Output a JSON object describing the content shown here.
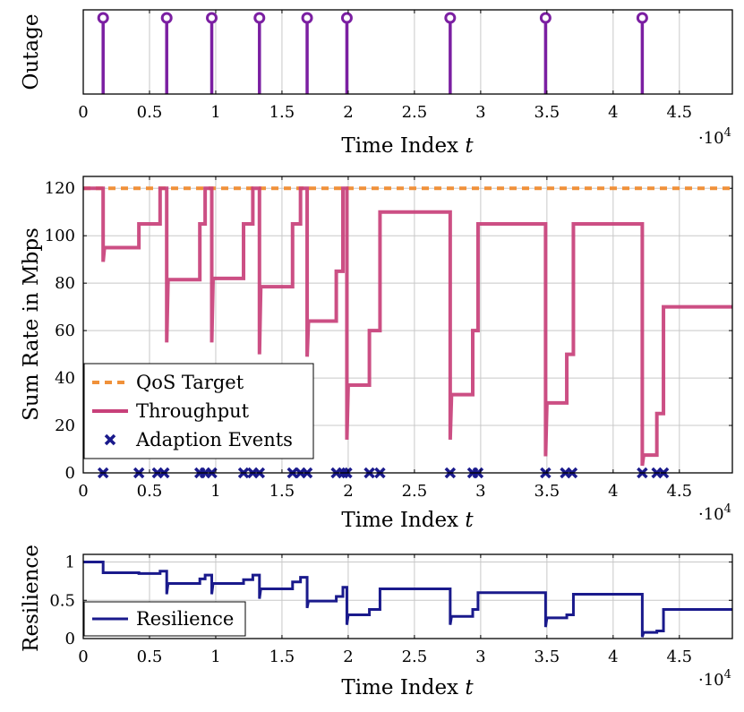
{
  "colors": {
    "outage": "#7b1fa2",
    "qos": "#f0913a",
    "throughput": "#c8407a",
    "adaption": "#1a1a8c",
    "resilience": "#1a1a8c"
  },
  "chart_data": [
    {
      "type": "stem",
      "title": "",
      "xlabel": "Time Index t",
      "ylabel": "Outage",
      "x_multiplier_label": "·10^4",
      "xlim": [
        0,
        4.9
      ],
      "xticks": [
        "0",
        "0.5",
        "1",
        "1.5",
        "2",
        "2.5",
        "3",
        "3.5",
        "4",
        "4.5"
      ],
      "grid": true,
      "series": [
        {
          "x": [
            0.15,
            0.63,
            0.97,
            1.33,
            1.69,
            1.99,
            2.77,
            3.49,
            4.22
          ],
          "marker": "open-circle"
        }
      ]
    },
    {
      "type": "line",
      "title": "",
      "xlabel": "Time Index t",
      "ylabel": "Sum Rate in Mbps",
      "x_multiplier_label": "·10^4",
      "xlim": [
        0,
        4.9
      ],
      "ylim": [
        0,
        125
      ],
      "xticks": [
        "0",
        "0.5",
        "1",
        "1.5",
        "2",
        "2.5",
        "3",
        "3.5",
        "4",
        "4.5"
      ],
      "yticks": [
        "0",
        "20",
        "40",
        "60",
        "80",
        "100",
        "120"
      ],
      "grid": true,
      "legend_position": "bottom-left",
      "series": [
        {
          "name": "QoS Target",
          "style": "dashed",
          "x": [
            0,
            4.9
          ],
          "y": [
            120,
            120
          ]
        },
        {
          "name": "Throughput",
          "style": "step",
          "x": [
            0,
            0.15,
            0.15,
            0.16,
            0.16,
            0.42,
            0.42,
            0.58,
            0.58,
            0.63,
            0.63,
            0.64,
            0.64,
            0.88,
            0.88,
            0.92,
            0.92,
            0.97,
            0.97,
            0.98,
            0.98,
            1.21,
            1.21,
            1.28,
            1.28,
            1.33,
            1.33,
            1.34,
            1.34,
            1.58,
            1.58,
            1.64,
            1.64,
            1.69,
            1.69,
            1.7,
            1.7,
            1.91,
            1.91,
            1.96,
            1.96,
            1.99,
            1.99,
            2.0,
            2.0,
            2.16,
            2.16,
            2.24,
            2.24,
            2.77,
            2.77,
            2.78,
            2.78,
            2.94,
            2.94,
            2.98,
            2.98,
            3.49,
            3.49,
            3.5,
            3.5,
            3.65,
            3.65,
            3.7,
            3.7,
            4.22,
            4.22,
            4.23,
            4.23,
            4.33,
            4.33,
            4.38,
            4.38,
            4.9
          ],
          "y": [
            120,
            120,
            89,
            95,
            95,
            95,
            105,
            105,
            120,
            120,
            55,
            81.5,
            81.5,
            81.5,
            105,
            105,
            120,
            120,
            55,
            82,
            82,
            82,
            105,
            105,
            120,
            120,
            50,
            78.5,
            78.5,
            78.5,
            105,
            105,
            120,
            120,
            49,
            64,
            64,
            64,
            85,
            85,
            120,
            120,
            14,
            37,
            37,
            37,
            60,
            60,
            110,
            110,
            14,
            33,
            33,
            33,
            60,
            60,
            105,
            105,
            7,
            29.5,
            29.5,
            29.5,
            50,
            50,
            105,
            105,
            3,
            7.5,
            7.5,
            7.5,
            25,
            25,
            70,
            70
          ]
        },
        {
          "name": "Adaption Events",
          "style": "markers",
          "marker": "x",
          "x": [
            0.15,
            0.42,
            0.56,
            0.61,
            0.88,
            0.92,
            0.97,
            1.21,
            1.28,
            1.33,
            1.58,
            1.64,
            1.69,
            1.91,
            1.96,
            1.99,
            2.16,
            2.24,
            2.77,
            2.94,
            2.98,
            3.49,
            3.64,
            3.69,
            4.22,
            4.33,
            4.38
          ],
          "y": [
            0,
            0,
            0,
            0,
            0,
            0,
            0,
            0,
            0,
            0,
            0,
            0,
            0,
            0,
            0,
            0,
            0,
            0,
            0,
            0,
            0,
            0,
            0,
            0,
            0,
            0,
            0
          ]
        }
      ]
    },
    {
      "type": "line",
      "title": "",
      "xlabel": "Time Index t",
      "ylabel": "Resilience",
      "x_multiplier_label": "·10^4",
      "xlim": [
        0,
        4.9
      ],
      "ylim": [
        0,
        1.1
      ],
      "xticks": [
        "0",
        "0.5",
        "1",
        "1.5",
        "2",
        "2.5",
        "3",
        "3.5",
        "4",
        "4.5"
      ],
      "yticks": [
        "0",
        "0.5",
        "1"
      ],
      "grid": true,
      "legend_position": "bottom-left",
      "series": [
        {
          "name": "Resilience",
          "style": "step",
          "x": [
            0,
            0.15,
            0.15,
            0.42,
            0.42,
            0.58,
            0.58,
            0.63,
            0.63,
            0.64,
            0.64,
            0.88,
            0.88,
            0.92,
            0.92,
            0.97,
            0.97,
            0.98,
            0.98,
            1.21,
            1.21,
            1.28,
            1.28,
            1.33,
            1.33,
            1.34,
            1.34,
            1.58,
            1.58,
            1.64,
            1.64,
            1.69,
            1.69,
            1.7,
            1.7,
            1.91,
            1.91,
            1.96,
            1.96,
            1.99,
            1.99,
            2.0,
            2.0,
            2.16,
            2.16,
            2.24,
            2.24,
            2.77,
            2.77,
            2.78,
            2.78,
            2.94,
            2.94,
            2.98,
            2.98,
            3.49,
            3.49,
            3.5,
            3.5,
            3.65,
            3.65,
            3.7,
            3.7,
            4.22,
            4.22,
            4.23,
            4.23,
            4.33,
            4.33,
            4.38,
            4.38,
            4.9
          ],
          "y": [
            1.0,
            1.0,
            0.86,
            0.86,
            0.85,
            0.85,
            0.88,
            0.88,
            0.58,
            0.72,
            0.72,
            0.72,
            0.78,
            0.78,
            0.83,
            0.83,
            0.58,
            0.72,
            0.72,
            0.72,
            0.77,
            0.77,
            0.83,
            0.83,
            0.52,
            0.65,
            0.65,
            0.65,
            0.74,
            0.74,
            0.8,
            0.8,
            0.4,
            0.49,
            0.49,
            0.49,
            0.55,
            0.55,
            0.67,
            0.67,
            0.18,
            0.31,
            0.31,
            0.31,
            0.38,
            0.38,
            0.65,
            0.65,
            0.18,
            0.29,
            0.29,
            0.29,
            0.38,
            0.38,
            0.6,
            0.6,
            0.15,
            0.27,
            0.27,
            0.27,
            0.31,
            0.31,
            0.58,
            0.58,
            0.02,
            0.08,
            0.08,
            0.08,
            0.1,
            0.1,
            0.38,
            0.38
          ]
        }
      ]
    }
  ]
}
